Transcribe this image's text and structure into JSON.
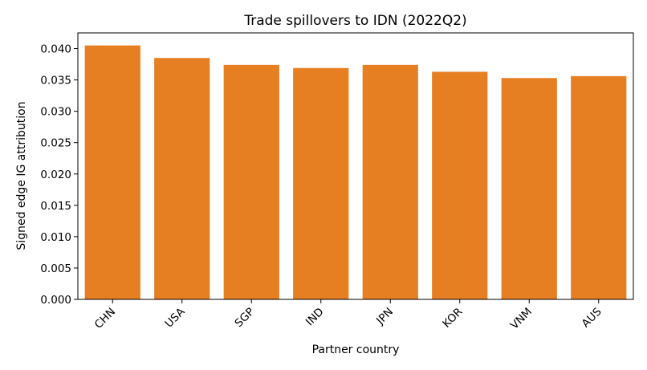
{
  "chart_data": {
    "type": "bar",
    "title": "Trade spillovers to IDN (2022Q2)",
    "xlabel": "Partner country",
    "ylabel": "Signed edge IG attribution",
    "categories": [
      "CHN",
      "USA",
      "SGP",
      "IND",
      "JPN",
      "KOR",
      "VNM",
      "AUS"
    ],
    "values": [
      0.0405,
      0.0385,
      0.0374,
      0.0369,
      0.0374,
      0.0363,
      0.0353,
      0.0356
    ],
    "ylim": [
      0,
      0.0425
    ],
    "yticks": [
      "0.000",
      "0.005",
      "0.010",
      "0.015",
      "0.020",
      "0.025",
      "0.030",
      "0.035",
      "0.040"
    ],
    "ytick_values": [
      0,
      0.005,
      0.01,
      0.015,
      0.02,
      0.025,
      0.03,
      0.035,
      0.04
    ],
    "bar_color": "#e67e22",
    "grid": false,
    "legend": "none"
  }
}
